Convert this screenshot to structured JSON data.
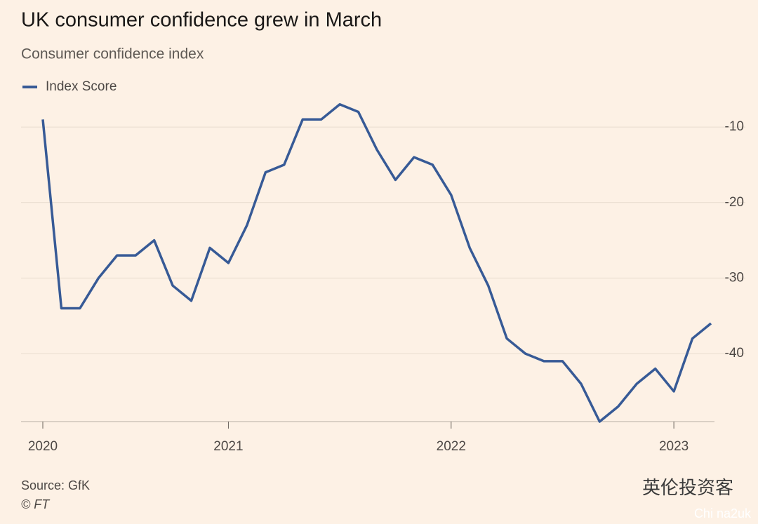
{
  "chart_data": {
    "type": "line",
    "title": "UK consumer confidence grew in March",
    "subtitle": "Consumer confidence index",
    "x": [
      0,
      1,
      2,
      3,
      4,
      5,
      6,
      7,
      8,
      9,
      10,
      11,
      12,
      13,
      14,
      15,
      16,
      17,
      18,
      19,
      20,
      21,
      22,
      23,
      24,
      25,
      26,
      27,
      28,
      29,
      30,
      31,
      32,
      33,
      34,
      35,
      36
    ],
    "series": [
      {
        "name": "Index Score",
        "color": "#375a96",
        "values": [
          -9,
          -34,
          -34,
          -30,
          -27,
          -27,
          -25,
          -31,
          -33,
          -26,
          -28,
          -23,
          -16,
          -15,
          -9,
          -9,
          -7,
          -8,
          -13,
          -17,
          -14,
          -15,
          -19,
          -26,
          -31,
          -38,
          -40,
          -41,
          -41,
          -44,
          -49,
          -47,
          -44,
          -42,
          -45,
          -38,
          -36
        ]
      }
    ],
    "xlim": [
      0,
      36
    ],
    "xticks": [
      {
        "value": 0,
        "label": "2020"
      },
      {
        "value": 10,
        "label": "2021"
      },
      {
        "value": 22,
        "label": "2022"
      },
      {
        "value": 34,
        "label": "2023"
      }
    ],
    "ylim": [
      -49,
      -6
    ],
    "yticks": [
      -10,
      -20,
      -30,
      -40
    ],
    "grid": true,
    "source": "Source: GfK",
    "credit": "© FT",
    "watermark": "英伦投资客",
    "watermark_sub": "Chi na2uk"
  }
}
